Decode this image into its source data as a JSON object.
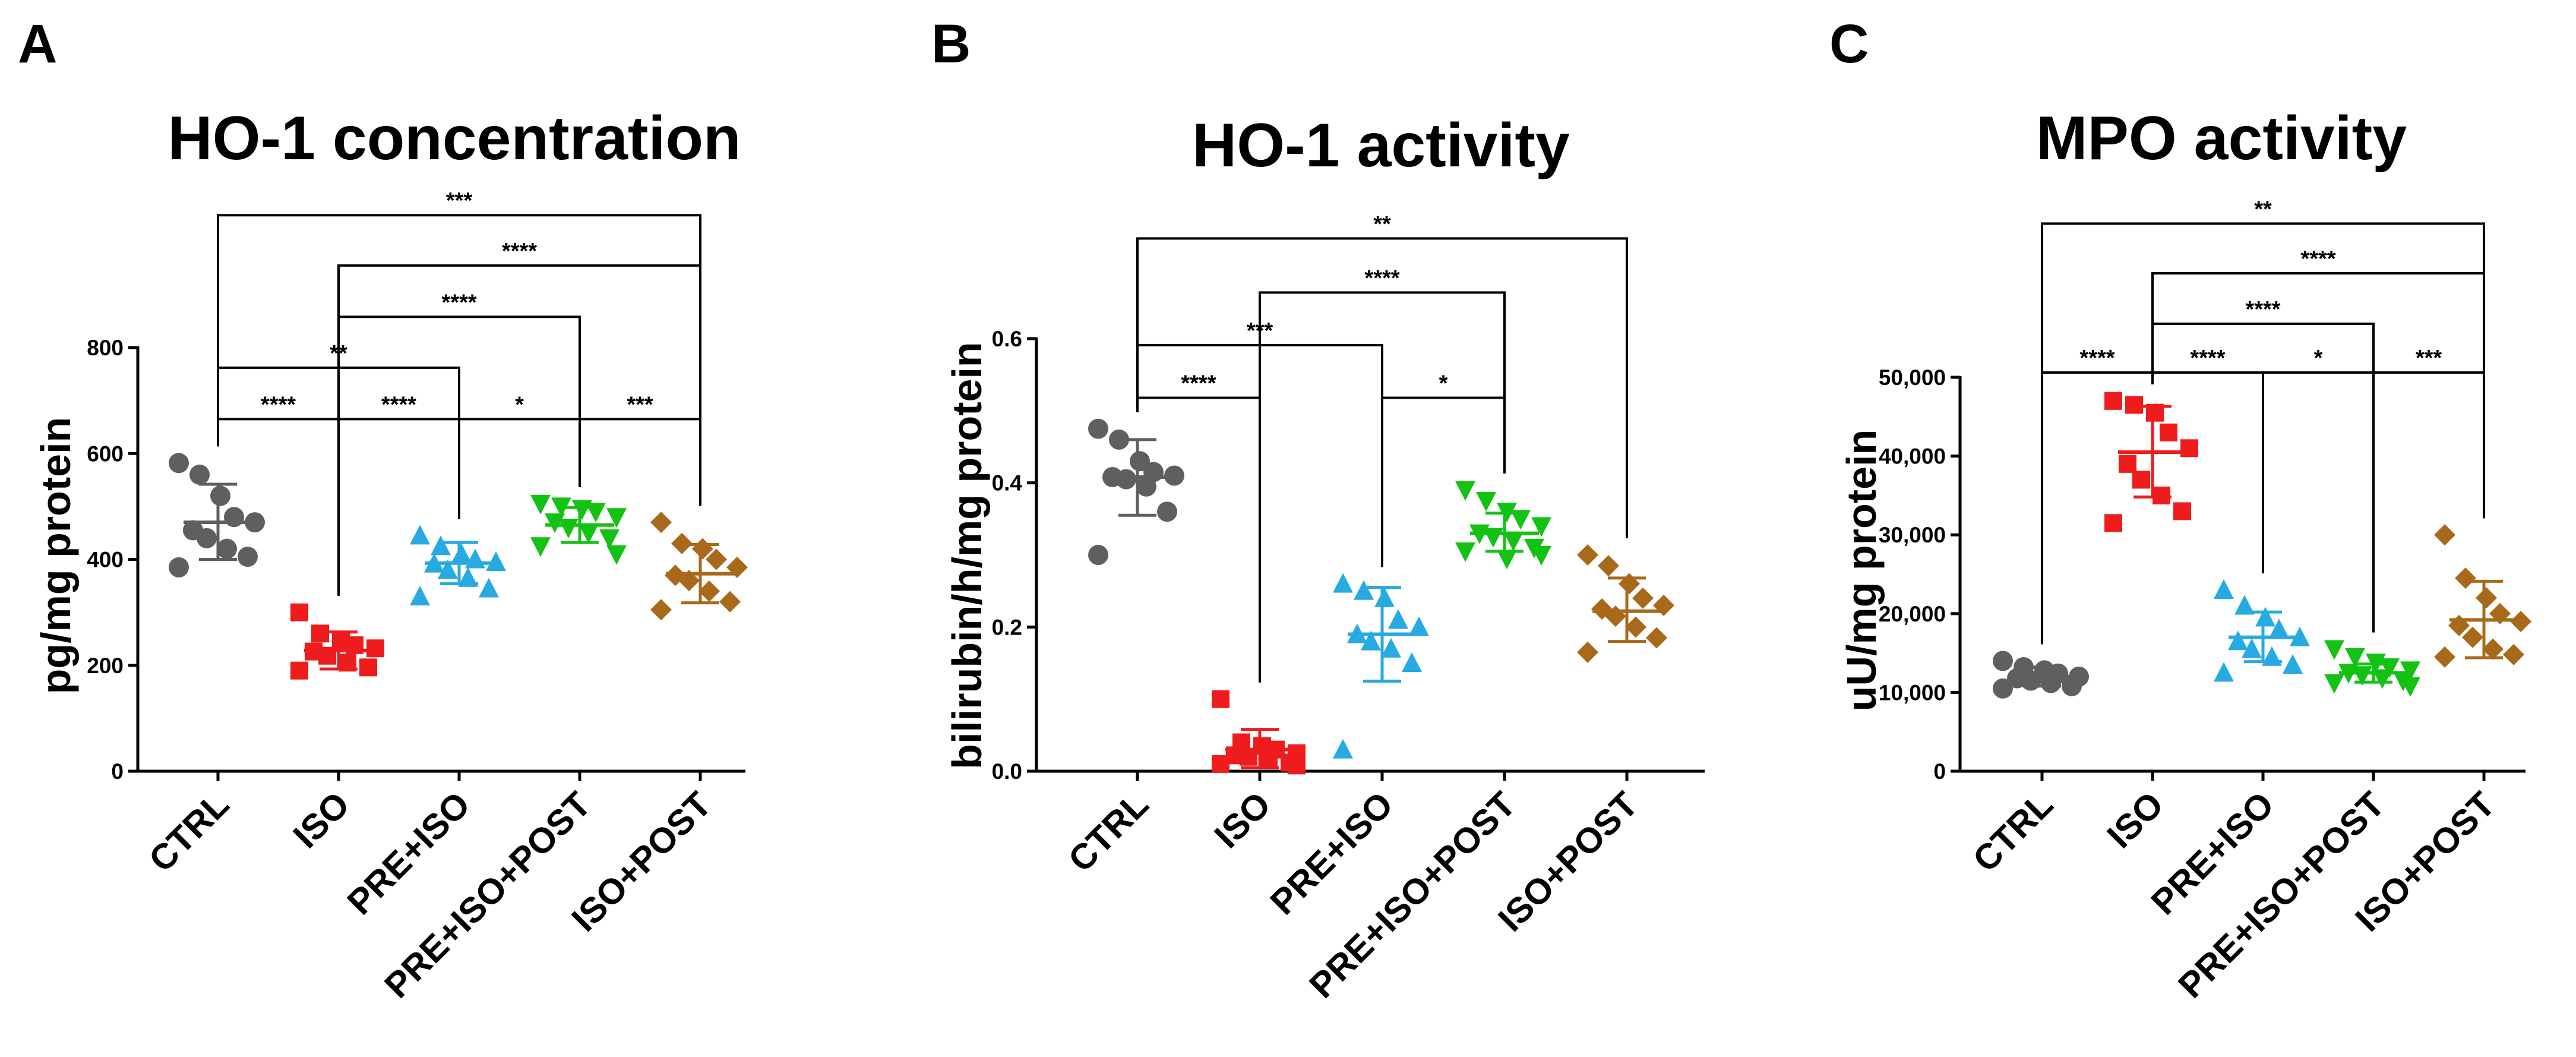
{
  "chart_data": [
    {
      "panel": "A",
      "type": "scatter",
      "title": "HO-1 concentration",
      "ylabel": "pg/mg protein",
      "ylim": [
        0,
        800
      ],
      "yticks": [
        0,
        200,
        400,
        600,
        800
      ],
      "ytick_labels": [
        "0",
        "200",
        "400",
        "600",
        "800"
      ],
      "categories": [
        "CTRL",
        "ISO",
        "PRE+ISO",
        "PRE+ISO+POST",
        "ISO+POST"
      ],
      "series": [
        {
          "name": "CTRL",
          "color": "#5f5f5f",
          "marker": "circle",
          "mean": 470,
          "sd_low": 400,
          "sd_high": 542,
          "values": [
            582,
            560,
            520,
            480,
            470,
            455,
            440,
            420,
            405,
            385
          ]
        },
        {
          "name": "ISO",
          "color": "#ee1c1c",
          "marker": "square",
          "mean": 228,
          "sd_low": 193,
          "sd_high": 263,
          "values": [
            300,
            260,
            245,
            238,
            232,
            226,
            218,
            205,
            196,
            190
          ]
        },
        {
          "name": "PRE+ISO",
          "color": "#27aae1",
          "marker": "triangle-up",
          "mean": 393,
          "sd_low": 354,
          "sd_high": 432,
          "values": [
            445,
            425,
            410,
            400,
            395,
            392,
            380,
            365,
            345,
            330
          ]
        },
        {
          "name": "PRE+ISO+POST",
          "color": "#13c213",
          "marker": "triangle-down",
          "mean": 465,
          "sd_low": 432,
          "sd_high": 498,
          "values": [
            505,
            500,
            495,
            490,
            480,
            470,
            460,
            450,
            440,
            425,
            410
          ]
        },
        {
          "name": "ISO+POST",
          "color": "#a8691b",
          "marker": "diamond",
          "mean": 373,
          "sd_low": 318,
          "sd_high": 428,
          "values": [
            470,
            430,
            420,
            400,
            385,
            370,
            360,
            340,
            320,
            305
          ]
        }
      ],
      "comparisons": [
        {
          "from": 0,
          "to": 4,
          "label": "***",
          "y": 1050
        },
        {
          "from": 1,
          "to": 4,
          "label": "****",
          "y": 955
        },
        {
          "from": 1,
          "to": 3,
          "label": "****",
          "y": 858
        },
        {
          "from": 0,
          "to": 2,
          "label": "**",
          "y": 762
        },
        {
          "from": 0,
          "to": 1,
          "label": "****",
          "y": 665
        },
        {
          "from": 1,
          "to": 2,
          "label": "****",
          "y": 665
        },
        {
          "from": 2,
          "to": 3,
          "label": "*",
          "y": 665
        },
        {
          "from": 3,
          "to": 4,
          "label": "***",
          "y": 665
        }
      ]
    },
    {
      "panel": "B",
      "type": "scatter",
      "title": "HO-1 activity",
      "ylabel": "bilirubin/h/mg protein",
      "ylim": [
        0,
        0.6
      ],
      "yticks": [
        0,
        0.2,
        0.4,
        0.6
      ],
      "ytick_labels": [
        "0.0",
        "0.2",
        "0.4",
        "0.6"
      ],
      "categories": [
        "CTRL",
        "ISO",
        "PRE+ISO",
        "PRE+ISO+POST",
        "ISO+POST"
      ],
      "series": [
        {
          "name": "CTRL",
          "color": "#5f5f5f",
          "marker": "circle",
          "mean": 0.408,
          "sd_low": 0.355,
          "sd_high": 0.46,
          "values": [
            0.475,
            0.46,
            0.43,
            0.415,
            0.41,
            0.408,
            0.405,
            0.395,
            0.36,
            0.3
          ]
        },
        {
          "name": "ISO",
          "color": "#ee1c1c",
          "marker": "square",
          "mean": 0.03,
          "sd_low": 0.005,
          "sd_high": 0.058,
          "values": [
            0.1,
            0.04,
            0.035,
            0.03,
            0.025,
            0.022,
            0.02,
            0.015,
            0.012,
            0.01,
            0.008
          ]
        },
        {
          "name": "PRE+ISO",
          "color": "#27aae1",
          "marker": "triangle-up",
          "mean": 0.19,
          "sd_low": 0.125,
          "sd_high": 0.255,
          "values": [
            0.26,
            0.25,
            0.24,
            0.21,
            0.2,
            0.19,
            0.18,
            0.17,
            0.15,
            0.03
          ]
        },
        {
          "name": "PRE+ISO+POST",
          "color": "#13c213",
          "marker": "triangle-down",
          "mean": 0.33,
          "sd_low": 0.305,
          "sd_high": 0.358,
          "values": [
            0.39,
            0.375,
            0.36,
            0.35,
            0.34,
            0.33,
            0.325,
            0.32,
            0.31,
            0.305,
            0.3,
            0.295
          ]
        },
        {
          "name": "ISO+POST",
          "color": "#a8691b",
          "marker": "diamond",
          "mean": 0.222,
          "sd_low": 0.18,
          "sd_high": 0.268,
          "values": [
            0.3,
            0.285,
            0.26,
            0.24,
            0.23,
            0.225,
            0.215,
            0.2,
            0.185,
            0.165
          ]
        }
      ],
      "comparisons": [
        {
          "from": 0,
          "to": 4,
          "label": "**",
          "y": 0.739
        },
        {
          "from": 1,
          "to": 3,
          "label": "****",
          "y": 0.664
        },
        {
          "from": 0,
          "to": 2,
          "label": "***",
          "y": 0.591
        },
        {
          "from": 2,
          "to": 3,
          "label": "*",
          "y": 0.518
        },
        {
          "from": 0,
          "to": 1,
          "label": "****",
          "y": 0.518
        }
      ]
    },
    {
      "panel": "C",
      "type": "scatter",
      "title": "MPO activity",
      "ylabel": "uU/mg protein",
      "ylim": [
        0,
        50000
      ],
      "yticks": [
        0,
        10000,
        20000,
        30000,
        40000,
        50000
      ],
      "ytick_labels": [
        "0",
        "10,000",
        "20,000",
        "30,000",
        "40,000",
        "50,000"
      ],
      "categories": [
        "CTRL",
        "ISO",
        "PRE+ISO",
        "PRE+ISO+POST",
        "ISO+POST"
      ],
      "series": [
        {
          "name": "CTRL",
          "color": "#5f5f5f",
          "marker": "circle",
          "mean": 12000,
          "sd_low": 10800,
          "sd_high": 13200,
          "values": [
            14000,
            13200,
            12800,
            12400,
            12000,
            11800,
            11500,
            11200,
            10800,
            10500
          ]
        },
        {
          "name": "ISO",
          "color": "#ee1c1c",
          "marker": "square",
          "mean": 40500,
          "sd_low": 34800,
          "sd_high": 46300,
          "values": [
            47000,
            46500,
            45500,
            43000,
            41000,
            39000,
            37000,
            35000,
            33000,
            31500
          ]
        },
        {
          "name": "PRE+ISO",
          "color": "#27aae1",
          "marker": "triangle-up",
          "mean": 17000,
          "sd_low": 13900,
          "sd_high": 20200,
          "values": [
            23000,
            21000,
            19500,
            18000,
            17000,
            16500,
            15500,
            14500,
            13500,
            12500
          ]
        },
        {
          "name": "PRE+ISO+POST",
          "color": "#13c213",
          "marker": "triangle-down",
          "mean": 12500,
          "sd_low": 11300,
          "sd_high": 13600,
          "values": [
            15500,
            14500,
            13800,
            13200,
            12800,
            12500,
            12200,
            11800,
            11500,
            11200,
            10800
          ]
        },
        {
          "name": "ISO+POST",
          "color": "#a8691b",
          "marker": "diamond",
          "mean": 19200,
          "sd_low": 14400,
          "sd_high": 24100,
          "values": [
            30000,
            24500,
            22000,
            20000,
            19000,
            18500,
            17000,
            15500,
            14800,
            14500
          ]
        }
      ],
      "comparisons": [
        {
          "from": 0,
          "to": 4,
          "label": "**",
          "y": 69500
        },
        {
          "from": 1,
          "to": 4,
          "label": "****",
          "y": 63200
        },
        {
          "from": 1,
          "to": 3,
          "label": "****",
          "y": 56800
        },
        {
          "from": 0,
          "to": 1,
          "label": "****",
          "y": 50600
        },
        {
          "from": 1,
          "to": 2,
          "label": "****",
          "y": 50600
        },
        {
          "from": 2,
          "to": 3,
          "label": "*",
          "y": 50600
        },
        {
          "from": 3,
          "to": 4,
          "label": "***",
          "y": 50600
        }
      ]
    }
  ]
}
